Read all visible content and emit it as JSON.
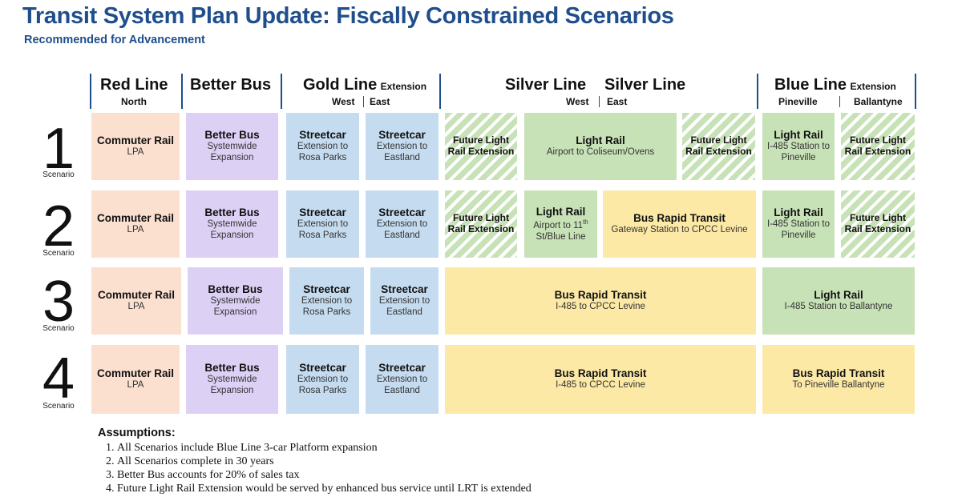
{
  "title": "Transit System Plan Update: Fiscally Constrained Scenarios",
  "subtitle": "Recommended for Advancement",
  "headers": {
    "red": {
      "name": "Red Line",
      "sub": "North"
    },
    "better_bus": {
      "name": "Better Bus"
    },
    "gold": {
      "name": "Gold Line",
      "ext": "Extension",
      "west": "West",
      "east": "East"
    },
    "silver_west": {
      "name": "Silver Line",
      "sub": "West"
    },
    "silver_east": {
      "name": "Silver Line",
      "sub": "East"
    },
    "blue": {
      "name": "Blue Line",
      "ext": "Extension",
      "pineville": "Pineville",
      "ballantyne": "Ballantyne"
    }
  },
  "scenario_label": "Scenario",
  "scenarios": [
    {
      "number": "1",
      "cells": [
        {
          "title": "Commuter Rail",
          "desc": "LPA"
        },
        {
          "title": "Better Bus",
          "desc": "Systemwide Expansion"
        },
        {
          "title": "Streetcar",
          "desc": "Extension to Rosa Parks"
        },
        {
          "title": "Streetcar",
          "desc": "Extension to Eastland"
        },
        {
          "title": "Future Light Rail Extension"
        },
        {
          "title": "Light Rail",
          "desc": "Airport to Coliseum/Ovens"
        },
        {
          "title": "Future Light Rail Extension"
        },
        {
          "title": "Light Rail",
          "desc": "I-485 Station to Pineville"
        },
        {
          "title": "Future Light Rail Extension"
        }
      ]
    },
    {
      "number": "2",
      "cells": [
        {
          "title": "Commuter Rail",
          "desc": "LPA"
        },
        {
          "title": "Better Bus",
          "desc": "Systemwide Expansion"
        },
        {
          "title": "Streetcar",
          "desc": "Extension to Rosa Parks"
        },
        {
          "title": "Streetcar",
          "desc": "Extension to Eastland"
        },
        {
          "title": "Future Light Rail Extension"
        },
        {
          "title": "Light Rail",
          "desc_a": "Airport to 11",
          "desc_sup": "th",
          "desc_b": " St/Blue Line"
        },
        {
          "title": "Bus Rapid Transit",
          "desc": "Gateway Station to CPCC Levine"
        },
        {
          "title": "Light Rail",
          "desc": "I-485 Station to Pineville"
        },
        {
          "title": "Future Light Rail Extension"
        }
      ]
    },
    {
      "number": "3",
      "cells": [
        {
          "title": "Commuter Rail",
          "desc": "LPA"
        },
        {
          "title": "Better Bus",
          "desc": "Systemwide Expansion"
        },
        {
          "title": "Streetcar",
          "desc": "Extension to Rosa Parks"
        },
        {
          "title": "Streetcar",
          "desc": "Extension to Eastland"
        },
        {
          "title": "Bus Rapid Transit",
          "desc": "I-485 to CPCC Levine"
        },
        {
          "title": "Light Rail",
          "desc": "I-485 Station to Ballantyne"
        }
      ]
    },
    {
      "number": "4",
      "cells": [
        {
          "title": "Commuter Rail",
          "desc": "LPA"
        },
        {
          "title": "Better Bus",
          "desc": "Systemwide Expansion"
        },
        {
          "title": "Streetcar",
          "desc": "Extension to Rosa Parks"
        },
        {
          "title": "Streetcar",
          "desc": "Extension to Eastland"
        },
        {
          "title": "Bus Rapid Transit",
          "desc": "I-485 to CPCC Levine"
        },
        {
          "title": "Bus Rapid Transit",
          "desc": "To Pineville Ballantyne"
        }
      ]
    }
  ],
  "assumptions": {
    "heading": "Assumptions:",
    "items": [
      "All Scenarios include Blue Line 3-car Platform expansion",
      "All Scenarios complete in 30 years",
      "Better Bus accounts for 20% of sales tax",
      "Future Light Rail Extension would be served by enhanced bus service until LRT is extended"
    ]
  },
  "colors": {
    "title": "#1f4e8c",
    "commuter_rail": "#fbe0d0",
    "better_bus": "#ddd0f5",
    "streetcar": "#c5dcf0",
    "light_rail": "#c8e2b7",
    "bus_rapid_transit": "#fde9a6"
  }
}
